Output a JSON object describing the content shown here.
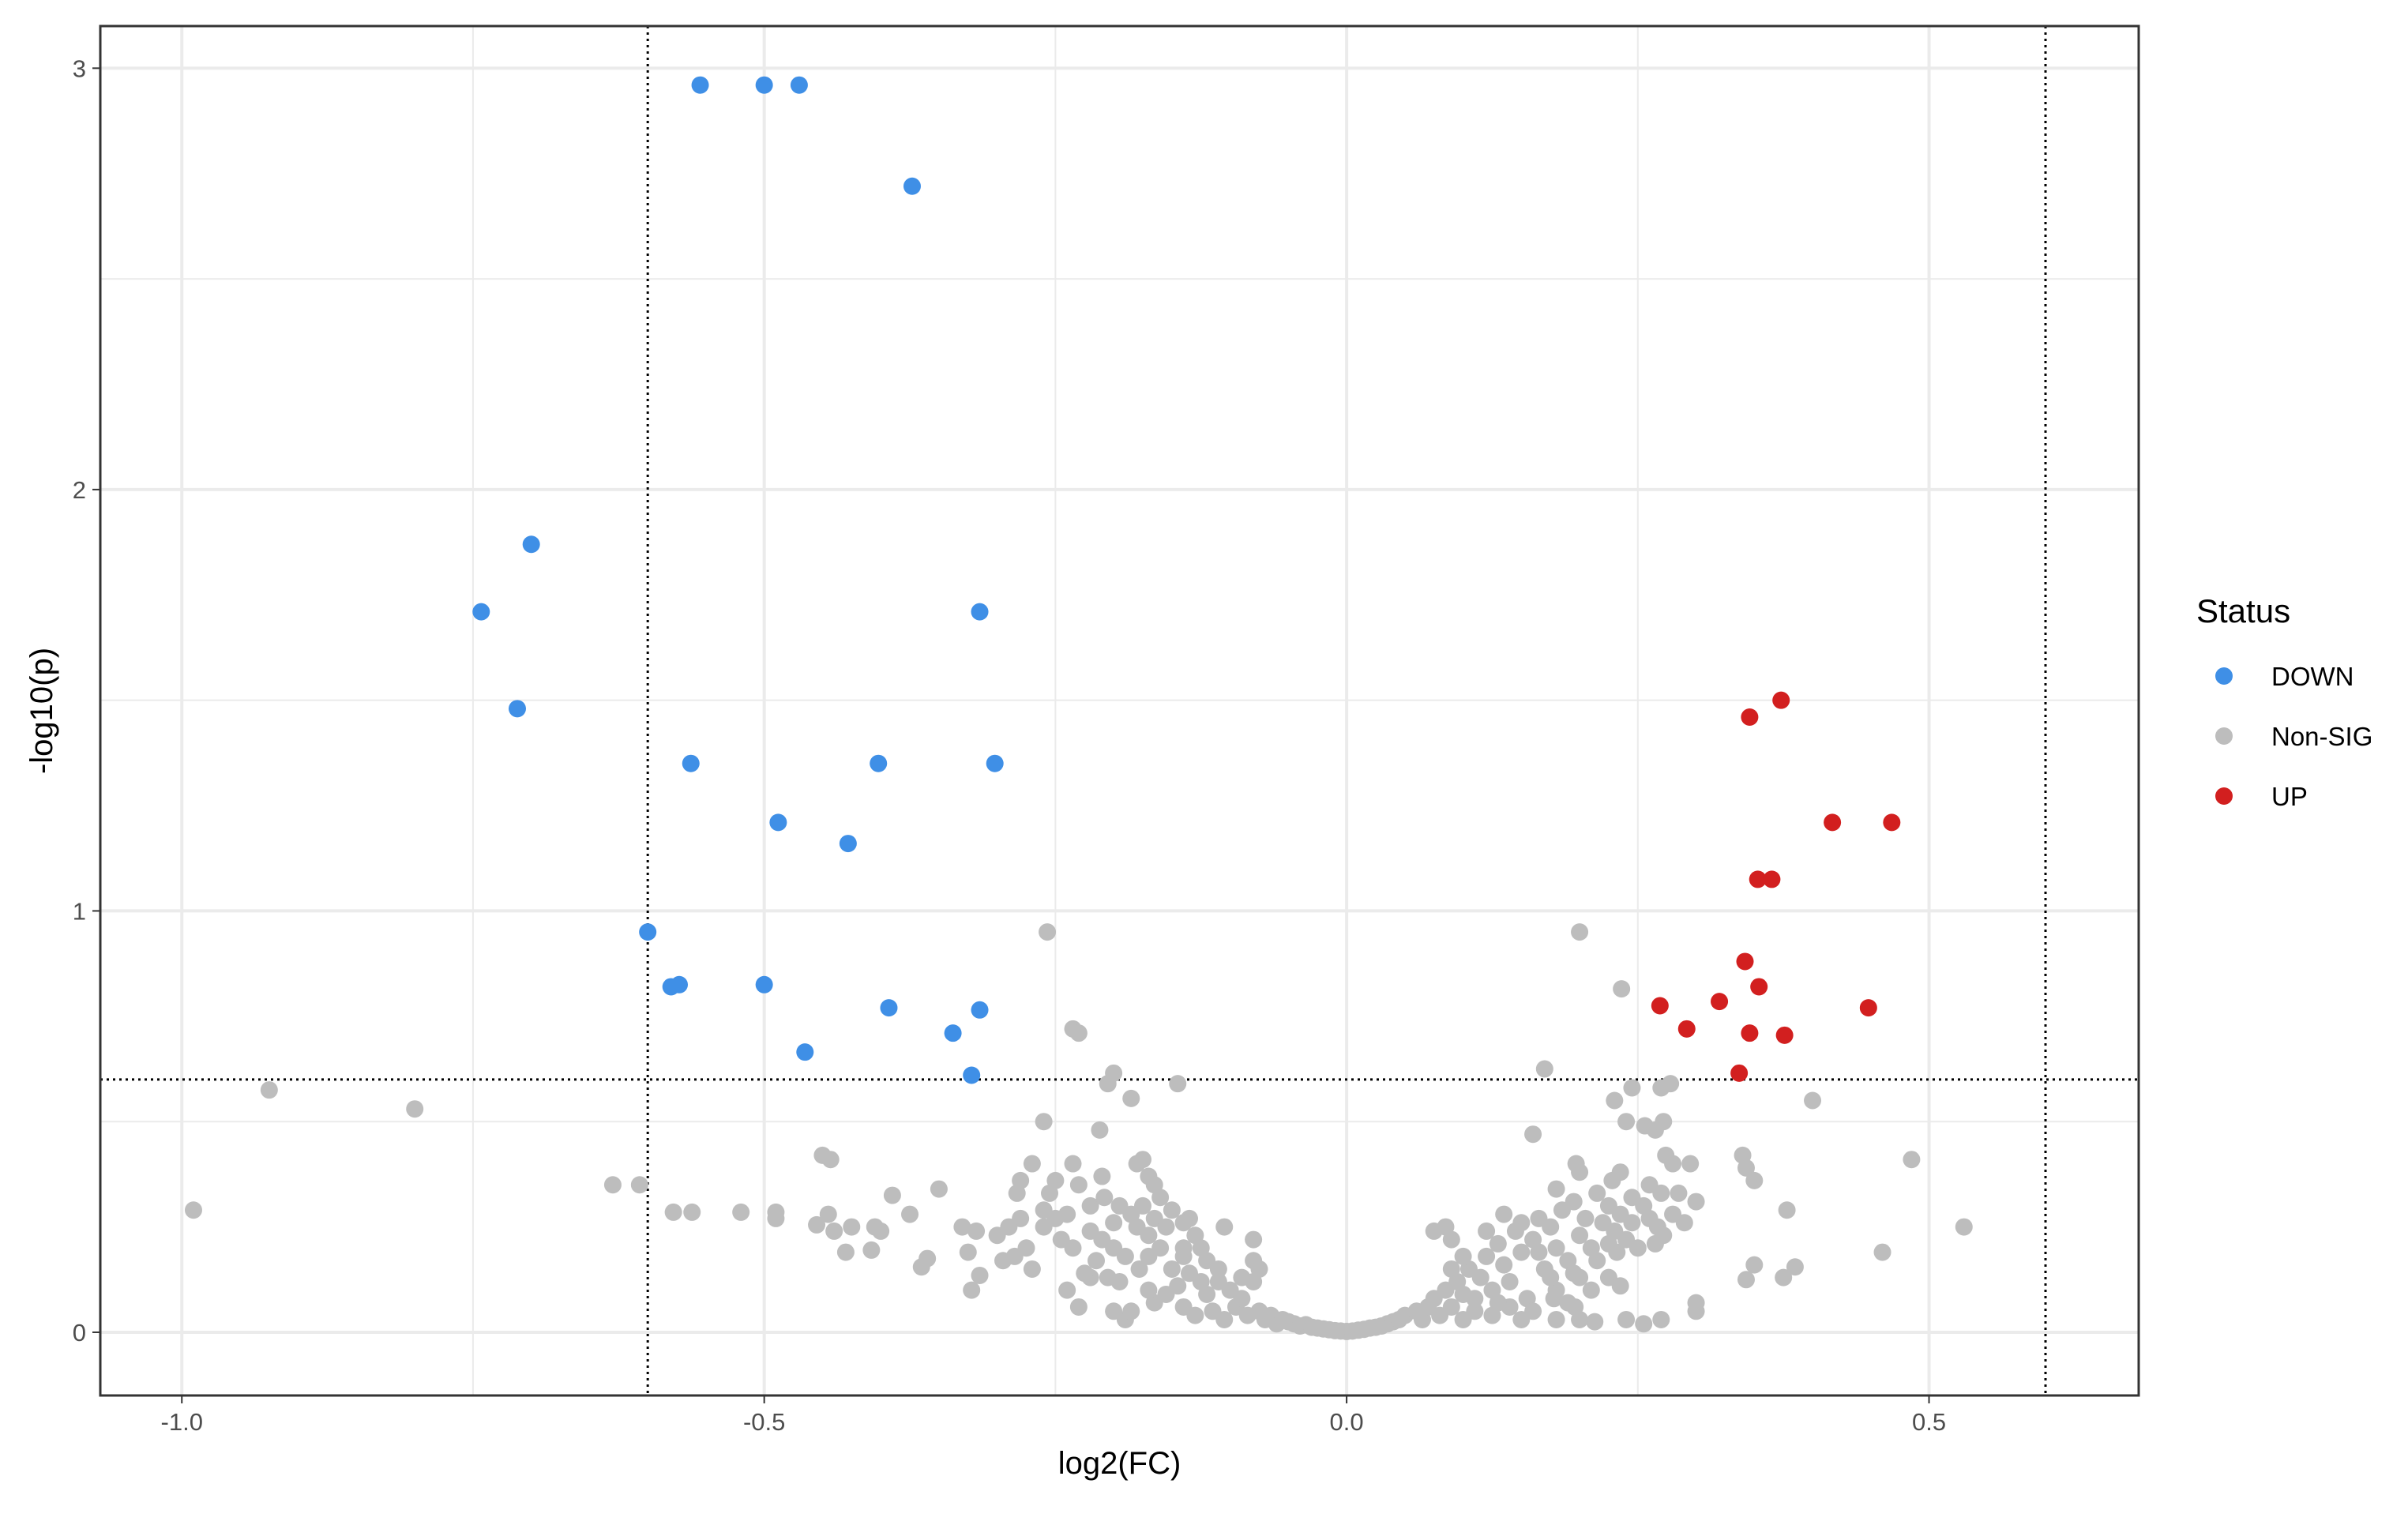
{
  "chart_data": {
    "type": "scatter",
    "title": "",
    "xlabel": "log2(FC)",
    "ylabel": "-log10(p)",
    "xlim": [
      -1.07,
      0.68
    ],
    "ylim": [
      -0.15,
      3.1
    ],
    "xticks": [
      -1.0,
      -0.5,
      0.0,
      0.5
    ],
    "xtick_labels": [
      "-1.0",
      "-0.5",
      "0.0",
      "0.5"
    ],
    "yticks": [
      0,
      1,
      2,
      3
    ],
    "ytick_labels": [
      "0",
      "1",
      "2",
      "3"
    ],
    "grid": true,
    "thresholds": {
      "x": [
        -0.6,
        0.6
      ],
      "y": 0.6,
      "style": "dotted"
    },
    "legend": {
      "title": "Status",
      "position": "right",
      "entries": [
        {
          "label": "DOWN",
          "color": "#3f8fe6"
        },
        {
          "label": "Non-SIG",
          "color": "#bdbdbd"
        },
        {
          "label": "UP",
          "color": "#d21f1f"
        }
      ]
    },
    "series": [
      {
        "name": "DOWN",
        "color": "#3f8fe6",
        "points": [
          [
            -0.555,
            2.96
          ],
          [
            -0.5,
            2.96
          ],
          [
            -0.47,
            2.96
          ],
          [
            -0.373,
            2.72
          ],
          [
            -0.7,
            1.87
          ],
          [
            -0.743,
            1.71
          ],
          [
            -0.315,
            1.71
          ],
          [
            -0.712,
            1.48
          ],
          [
            -0.563,
            1.35
          ],
          [
            -0.402,
            1.35
          ],
          [
            -0.302,
            1.35
          ],
          [
            -0.488,
            1.21
          ],
          [
            -0.428,
            1.16
          ],
          [
            -0.6,
            0.95
          ],
          [
            -0.58,
            0.82
          ],
          [
            -0.573,
            0.825
          ],
          [
            -0.5,
            0.825
          ],
          [
            -0.393,
            0.77
          ],
          [
            -0.315,
            0.765
          ],
          [
            -0.338,
            0.71
          ],
          [
            -0.465,
            0.665
          ],
          [
            -0.322,
            0.61
          ]
        ]
      },
      {
        "name": "UP",
        "color": "#d21f1f",
        "points": [
          [
            0.373,
            1.5
          ],
          [
            0.346,
            1.46
          ],
          [
            0.417,
            1.21
          ],
          [
            0.468,
            1.21
          ],
          [
            0.353,
            1.075
          ],
          [
            0.365,
            1.075
          ],
          [
            0.342,
            0.88
          ],
          [
            0.354,
            0.82
          ],
          [
            0.269,
            0.775
          ],
          [
            0.32,
            0.785
          ],
          [
            0.448,
            0.77
          ],
          [
            0.292,
            0.72
          ],
          [
            0.346,
            0.71
          ],
          [
            0.376,
            0.705
          ],
          [
            0.337,
            0.615
          ]
        ]
      },
      {
        "name": "Non-SIG",
        "color": "#bdbdbd",
        "points": [
          [
            -0.257,
            0.95
          ],
          [
            0.2,
            0.95
          ],
          [
            0.236,
            0.815
          ],
          [
            -0.235,
            0.72
          ],
          [
            -0.23,
            0.71
          ],
          [
            -0.2,
            0.615
          ],
          [
            -0.205,
            0.59
          ],
          [
            0.17,
            0.625
          ],
          [
            -0.185,
            0.555
          ],
          [
            -0.145,
            0.59
          ],
          [
            -0.925,
            0.575
          ],
          [
            -0.8,
            0.53
          ],
          [
            -0.99,
            0.29
          ],
          [
            -0.63,
            0.35
          ],
          [
            -0.607,
            0.35
          ],
          [
            -0.578,
            0.285
          ],
          [
            -0.562,
            0.285
          ],
          [
            -0.52,
            0.285
          ],
          [
            -0.49,
            0.285
          ],
          [
            -0.49,
            0.27
          ],
          [
            -0.45,
            0.42
          ],
          [
            -0.443,
            0.41
          ],
          [
            -0.445,
            0.28
          ],
          [
            -0.455,
            0.255
          ],
          [
            -0.44,
            0.24
          ],
          [
            -0.425,
            0.25
          ],
          [
            -0.43,
            0.19
          ],
          [
            -0.405,
            0.25
          ],
          [
            -0.4,
            0.24
          ],
          [
            -0.408,
            0.195
          ],
          [
            -0.39,
            0.325
          ],
          [
            -0.375,
            0.28
          ],
          [
            -0.35,
            0.34
          ],
          [
            -0.36,
            0.175
          ],
          [
            -0.365,
            0.155
          ],
          [
            -0.33,
            0.25
          ],
          [
            -0.318,
            0.24
          ],
          [
            -0.325,
            0.19
          ],
          [
            -0.315,
            0.135
          ],
          [
            -0.322,
            0.1
          ],
          [
            -0.3,
            0.23
          ],
          [
            -0.285,
            0.18
          ],
          [
            -0.27,
            0.15
          ],
          [
            -0.28,
            0.36
          ],
          [
            -0.283,
            0.33
          ],
          [
            -0.27,
            0.4
          ],
          [
            -0.26,
            0.5
          ],
          [
            -0.25,
            0.36
          ],
          [
            -0.235,
            0.4
          ],
          [
            -0.23,
            0.35
          ],
          [
            -0.212,
            0.48
          ],
          [
            -0.21,
            0.37
          ],
          [
            -0.18,
            0.4
          ],
          [
            -0.175,
            0.41
          ],
          [
            -0.17,
            0.37
          ],
          [
            -0.165,
            0.35
          ],
          [
            0.16,
            0.47
          ],
          [
            0.2,
            0.38
          ],
          [
            0.18,
            0.34
          ],
          [
            0.197,
            0.4
          ],
          [
            0.23,
            0.55
          ],
          [
            0.24,
            0.5
          ],
          [
            0.245,
            0.58
          ],
          [
            0.256,
            0.49
          ],
          [
            0.265,
            0.48
          ],
          [
            0.27,
            0.58
          ],
          [
            0.278,
            0.59
          ],
          [
            0.272,
            0.5
          ],
          [
            0.274,
            0.42
          ],
          [
            0.28,
            0.4
          ],
          [
            0.295,
            0.4
          ],
          [
            0.26,
            0.35
          ],
          [
            0.27,
            0.33
          ],
          [
            0.285,
            0.33
          ],
          [
            0.28,
            0.28
          ],
          [
            0.267,
            0.25
          ],
          [
            0.272,
            0.23
          ],
          [
            0.29,
            0.26
          ],
          [
            0.3,
            0.31
          ],
          [
            0.34,
            0.42
          ],
          [
            0.343,
            0.39
          ],
          [
            0.35,
            0.36
          ],
          [
            0.378,
            0.29
          ],
          [
            0.4,
            0.55
          ],
          [
            0.485,
            0.41
          ],
          [
            0.53,
            0.25
          ],
          [
            0.46,
            0.19
          ],
          [
            0.385,
            0.155
          ],
          [
            0.375,
            0.13
          ],
          [
            0.35,
            0.16
          ],
          [
            0.343,
            0.125
          ],
          [
            0.3,
            0.07
          ],
          [
            0.3,
            0.05
          ],
          [
            0.27,
            0.03
          ],
          [
            0.255,
            0.02
          ],
          [
            0.24,
            0.03
          ],
          [
            0.213,
            0.025
          ],
          [
            0.2,
            0.03
          ],
          [
            0.18,
            0.03
          ],
          [
            0.2,
            0.13
          ],
          [
            0.225,
            0.13
          ],
          [
            0.235,
            0.11
          ],
          [
            0.196,
            0.06
          ],
          [
            0.178,
            0.08
          ],
          [
            0.232,
            0.19
          ],
          [
            0.225,
            0.21
          ],
          [
            0.075,
            0.24
          ],
          [
            0.085,
            0.25
          ],
          [
            0.09,
            0.22
          ],
          [
            -0.24,
            0.1
          ],
          [
            -0.22,
            0.13
          ],
          [
            -0.23,
            0.06
          ],
          [
            -0.195,
            0.12
          ],
          [
            -0.2,
            0.05
          ],
          [
            -0.19,
            0.03
          ],
          [
            -0.17,
            0.18
          ],
          [
            -0.178,
            0.15
          ],
          [
            -0.135,
            0.27
          ],
          [
            -0.14,
            0.2
          ],
          [
            -0.105,
            0.25
          ],
          [
            -0.08,
            0.22
          ],
          [
            -0.08,
            0.17
          ],
          [
            -0.075,
            0.15
          ],
          [
            -0.08,
            0.12
          ],
          [
            -0.2,
            0.26
          ],
          [
            -0.22,
            0.3
          ],
          [
            -0.24,
            0.28
          ],
          [
            -0.25,
            0.27
          ],
          [
            -0.26,
            0.29
          ],
          [
            -0.26,
            0.25
          ],
          [
            -0.245,
            0.22
          ],
          [
            -0.235,
            0.2
          ],
          [
            -0.22,
            0.24
          ],
          [
            -0.21,
            0.22
          ],
          [
            -0.208,
            0.32
          ],
          [
            -0.195,
            0.3
          ],
          [
            -0.185,
            0.28
          ],
          [
            -0.175,
            0.3
          ],
          [
            -0.165,
            0.27
          ],
          [
            -0.155,
            0.25
          ],
          [
            -0.16,
            0.32
          ],
          [
            -0.15,
            0.29
          ],
          [
            -0.14,
            0.26
          ],
          [
            -0.13,
            0.23
          ],
          [
            -0.125,
            0.2
          ],
          [
            -0.12,
            0.17
          ],
          [
            -0.135,
            0.14
          ],
          [
            -0.145,
            0.11
          ],
          [
            -0.155,
            0.09
          ],
          [
            -0.165,
            0.07
          ],
          [
            -0.14,
            0.06
          ],
          [
            -0.12,
            0.09
          ],
          [
            -0.11,
            0.12
          ],
          [
            -0.1,
            0.1
          ],
          [
            -0.115,
            0.05
          ],
          [
            -0.095,
            0.06
          ],
          [
            -0.09,
            0.08
          ],
          [
            -0.085,
            0.04
          ],
          [
            -0.075,
            0.05
          ],
          [
            -0.07,
            0.03
          ],
          [
            -0.065,
            0.04
          ],
          [
            -0.06,
            0.02
          ],
          [
            -0.055,
            0.03
          ],
          [
            -0.05,
            0.025
          ],
          [
            -0.045,
            0.02
          ],
          [
            -0.04,
            0.015
          ],
          [
            -0.035,
            0.018
          ],
          [
            -0.03,
            0.012
          ],
          [
            -0.025,
            0.01
          ],
          [
            -0.02,
            0.008
          ],
          [
            -0.015,
            0.006
          ],
          [
            -0.01,
            0.004
          ],
          [
            -0.005,
            0.003
          ],
          [
            0.0,
            0.002
          ],
          [
            0.005,
            0.003
          ],
          [
            0.01,
            0.005
          ],
          [
            0.015,
            0.007
          ],
          [
            0.02,
            0.01
          ],
          [
            0.025,
            0.012
          ],
          [
            0.03,
            0.015
          ],
          [
            0.035,
            0.02
          ],
          [
            0.04,
            0.025
          ],
          [
            0.045,
            0.03
          ],
          [
            0.05,
            0.04
          ],
          [
            0.06,
            0.05
          ],
          [
            0.065,
            0.03
          ],
          [
            0.07,
            0.06
          ],
          [
            0.075,
            0.08
          ],
          [
            0.08,
            0.04
          ],
          [
            0.085,
            0.1
          ],
          [
            0.09,
            0.06
          ],
          [
            0.095,
            0.12
          ],
          [
            0.1,
            0.09
          ],
          [
            0.105,
            0.15
          ],
          [
            0.11,
            0.05
          ],
          [
            0.115,
            0.13
          ],
          [
            0.12,
            0.18
          ],
          [
            0.125,
            0.1
          ],
          [
            0.13,
            0.21
          ],
          [
            0.135,
            0.16
          ],
          [
            0.14,
            0.12
          ],
          [
            0.145,
            0.24
          ],
          [
            0.15,
            0.19
          ],
          [
            0.155,
            0.08
          ],
          [
            0.16,
            0.22
          ],
          [
            0.165,
            0.27
          ],
          [
            0.17,
            0.15
          ],
          [
            0.175,
            0.25
          ],
          [
            0.18,
            0.2
          ],
          [
            0.185,
            0.29
          ],
          [
            0.19,
            0.17
          ],
          [
            0.195,
            0.31
          ],
          [
            0.2,
            0.23
          ],
          [
            0.205,
            0.27
          ],
          [
            0.21,
            0.2
          ],
          [
            0.215,
            0.33
          ],
          [
            0.22,
            0.26
          ],
          [
            0.225,
            0.3
          ],
          [
            0.23,
            0.24
          ],
          [
            0.235,
            0.28
          ],
          [
            0.24,
            0.22
          ],
          [
            0.245,
            0.26
          ],
          [
            0.25,
            0.2
          ],
          [
            -0.185,
            0.05
          ],
          [
            -0.17,
            0.1
          ],
          [
            -0.2,
            0.2
          ],
          [
            -0.215,
            0.17
          ],
          [
            -0.225,
            0.14
          ],
          [
            -0.13,
            0.04
          ],
          [
            -0.105,
            0.03
          ],
          [
            0.125,
            0.04
          ],
          [
            0.14,
            0.06
          ],
          [
            0.16,
            0.05
          ],
          [
            0.18,
            0.1
          ],
          [
            0.19,
            0.07
          ],
          [
            0.1,
            0.03
          ],
          [
            0.11,
            0.08
          ],
          [
            0.13,
            0.07
          ],
          [
            0.15,
            0.03
          ],
          [
            0.21,
            0.1
          ],
          [
            -0.15,
            0.15
          ],
          [
            -0.14,
            0.18
          ],
          [
            -0.16,
            0.2
          ],
          [
            -0.17,
            0.23
          ],
          [
            -0.18,
            0.25
          ],
          [
            -0.19,
            0.18
          ],
          [
            -0.205,
            0.13
          ],
          [
            -0.125,
            0.12
          ],
          [
            -0.11,
            0.15
          ],
          [
            -0.09,
            0.13
          ],
          [
            0.09,
            0.15
          ],
          [
            0.1,
            0.18
          ],
          [
            0.12,
            0.24
          ],
          [
            0.135,
            0.28
          ],
          [
            0.15,
            0.26
          ],
          [
            0.165,
            0.19
          ],
          [
            0.175,
            0.13
          ],
          [
            0.195,
            0.14
          ],
          [
            0.215,
            0.17
          ],
          [
            0.228,
            0.36
          ],
          [
            -0.28,
            0.27
          ],
          [
            -0.29,
            0.25
          ],
          [
            -0.295,
            0.17
          ],
          [
            -0.275,
            0.2
          ],
          [
            -0.255,
            0.33
          ],
          [
            0.255,
            0.3
          ],
          [
            0.26,
            0.27
          ],
          [
            0.265,
            0.21
          ],
          [
            0.245,
            0.32
          ],
          [
            0.235,
            0.38
          ]
        ]
      }
    ]
  }
}
